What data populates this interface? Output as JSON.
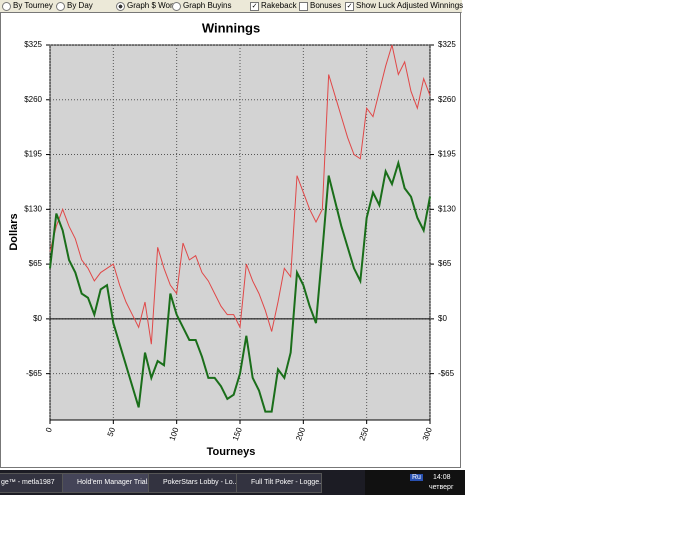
{
  "toolbar": {
    "by_tourney": "By Tourney",
    "by_day": "By Day",
    "graph_won": "Graph $ Won",
    "graph_buyins": "Graph Buyins",
    "rakeback": "Rakeback",
    "bonuses": "Bonuses",
    "luck_adjusted": "Show Luck Adjusted Winnings"
  },
  "taskbar": {
    "items": [
      "ge™ - metla1987",
      "Hold'em Manager Trial...",
      "PokerStars Lobby - Lo...",
      "Full Tilt Poker - Logge..."
    ],
    "lang": "Ru",
    "time": "14:08",
    "day": "четверг"
  },
  "chart_data": {
    "type": "line",
    "title": "Winnings",
    "x_label": "Tourneys",
    "y_label": "Dollars",
    "x": [
      0,
      5,
      10,
      15,
      20,
      25,
      30,
      35,
      40,
      45,
      50,
      55,
      60,
      65,
      70,
      75,
      80,
      85,
      90,
      95,
      100,
      105,
      110,
      115,
      120,
      125,
      130,
      135,
      140,
      145,
      150,
      155,
      160,
      165,
      170,
      175,
      180,
      185,
      190,
      195,
      200,
      205,
      210,
      215,
      220,
      225,
      230,
      235,
      240,
      245,
      250,
      255,
      260,
      265,
      270,
      275,
      280,
      285,
      290,
      295,
      300
    ],
    "series": [
      {
        "color": "#e04848",
        "values": [
          80,
          110,
          130,
          110,
          95,
          70,
          60,
          45,
          55,
          60,
          65,
          40,
          20,
          5,
          -10,
          20,
          -30,
          85,
          60,
          40,
          30,
          90,
          70,
          75,
          55,
          45,
          30,
          15,
          5,
          5,
          -10,
          65,
          45,
          30,
          10,
          -15,
          20,
          60,
          50,
          170,
          150,
          130,
          115,
          130,
          290,
          265,
          240,
          215,
          195,
          190,
          250,
          240,
          270,
          300,
          325,
          290,
          305,
          270,
          250,
          285,
          265
        ]
      },
      {
        "color": "#1a6e1a",
        "values": [
          60,
          125,
          105,
          70,
          55,
          30,
          25,
          5,
          35,
          40,
          -5,
          -30,
          -55,
          -80,
          -105,
          -40,
          -70,
          -50,
          -55,
          30,
          5,
          -10,
          -25,
          -25,
          -45,
          -70,
          -70,
          -80,
          -95,
          -90,
          -65,
          -20,
          -70,
          -85,
          -110,
          -110,
          -60,
          -70,
          -40,
          55,
          40,
          15,
          -5,
          80,
          170,
          140,
          110,
          85,
          60,
          45,
          120,
          150,
          135,
          175,
          160,
          185,
          155,
          145,
          120,
          105,
          145
        ]
      }
    ],
    "xlim": [
      0,
      300
    ],
    "xticks": [
      0,
      50,
      100,
      150,
      200,
      250,
      300
    ],
    "ylim": [
      -120,
      325
    ],
    "yticks": [
      {
        "value": -65,
        "label": "-$65"
      },
      {
        "value": 0,
        "label": "$0"
      },
      {
        "value": 65,
        "label": "$65"
      },
      {
        "value": 130,
        "label": "$130"
      },
      {
        "value": 195,
        "label": "$195"
      },
      {
        "value": 260,
        "label": "$260"
      },
      {
        "value": 325,
        "label": "$325"
      }
    ],
    "grid": true
  }
}
